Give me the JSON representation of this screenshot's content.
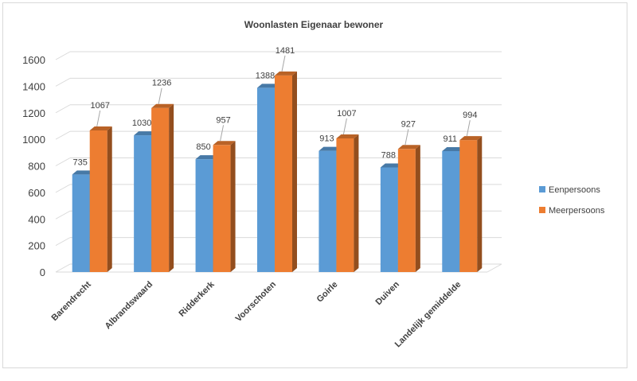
{
  "chart_data": {
    "type": "bar",
    "title": "Woonlasten Eigenaar bewoner",
    "categories": [
      "Barendrecht",
      "Albrandswaard",
      "Ridderkerk",
      "Voorschoten",
      "Goirle",
      "Duiven",
      "Landelijk gemiddelde"
    ],
    "series": [
      {
        "name": "Eenpersoons",
        "color": "#5b9bd5",
        "values": [
          735,
          1030,
          850,
          1388,
          913,
          788,
          911
        ]
      },
      {
        "name": "Meerpersoons",
        "color": "#ed7d31",
        "values": [
          1067,
          1236,
          957,
          1481,
          1007,
          927,
          994
        ]
      }
    ],
    "ylim": [
      0,
      1600
    ],
    "yticks": [
      0,
      200,
      400,
      600,
      800,
      1000,
      1200,
      1400,
      1600
    ],
    "grid": true,
    "legend_position": "right",
    "style": "3d-column"
  }
}
